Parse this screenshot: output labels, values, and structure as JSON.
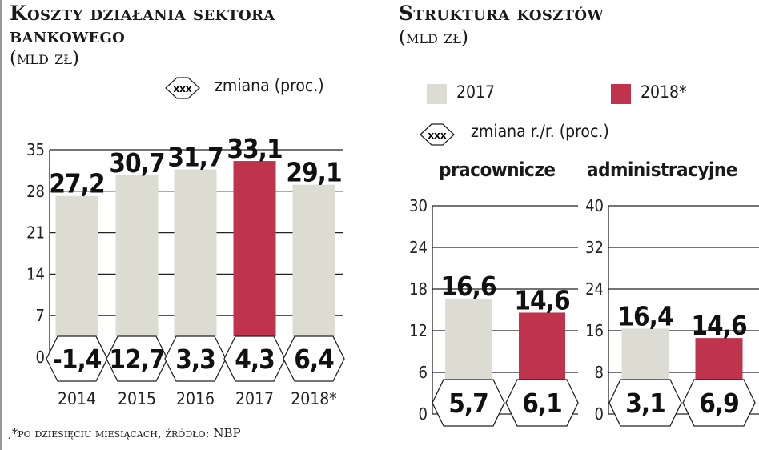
{
  "left": {
    "title_line1": "Koszty działania sektora",
    "title_line2": "bankowego",
    "unit": "(mld zł)",
    "legend_hex": "xxx",
    "legend_label": "zmiana (proc.)",
    "footnote": ",*po dziesięciu miesiącach, źródło: NBP"
  },
  "right": {
    "title": "Struktura kosztów",
    "unit": "(mld zł)",
    "legend": [
      {
        "label": "2017",
        "color": "#dcdcd2"
      },
      {
        "label": "2018*",
        "color": "#c0334d"
      }
    ],
    "legend_hex": "xxx",
    "legend_label": "zmiana r./r. (proc.)"
  },
  "chart_data": [
    {
      "type": "bar",
      "title": "Koszty działania sektora bankowego (mld zł)",
      "categories": [
        "2014",
        "2015",
        "2016",
        "2017",
        "2018*"
      ],
      "values": [
        27.2,
        30.7,
        31.7,
        33.1,
        29.1
      ],
      "value_labels": [
        "27,2",
        "30,7",
        "31,7",
        "33,1",
        "29,1"
      ],
      "change_pct": [
        "-1,4",
        "12,7",
        "3,3",
        "4,3",
        "6,4"
      ],
      "colors": [
        "#dcdcd2",
        "#dcdcd2",
        "#dcdcd2",
        "#c0334d",
        "#dcdcd2"
      ],
      "ylim": [
        0,
        35
      ],
      "yticks": [
        "0",
        "7",
        "14",
        "21",
        "28",
        "35"
      ]
    },
    {
      "type": "bar",
      "title": "pracownicze",
      "categories": [
        "2017",
        "2018*"
      ],
      "values": [
        16.6,
        14.6
      ],
      "value_labels": [
        "16,6",
        "14,6"
      ],
      "change_pct": [
        "5,7",
        "6,1"
      ],
      "colors": [
        "#dcdcd2",
        "#c0334d"
      ],
      "ylim": [
        0,
        30
      ],
      "yticks": [
        "0",
        "6",
        "12",
        "18",
        "24",
        "30"
      ]
    },
    {
      "type": "bar",
      "title": "administracyjne",
      "categories": [
        "2017",
        "2018*"
      ],
      "values": [
        16.4,
        14.6
      ],
      "value_labels": [
        "16,4",
        "14,6"
      ],
      "change_pct": [
        "3,1",
        "6,9"
      ],
      "colors": [
        "#dcdcd2",
        "#c0334d"
      ],
      "ylim": [
        0,
        40
      ],
      "yticks": [
        "0",
        "8",
        "16",
        "24",
        "32",
        "40"
      ]
    }
  ]
}
